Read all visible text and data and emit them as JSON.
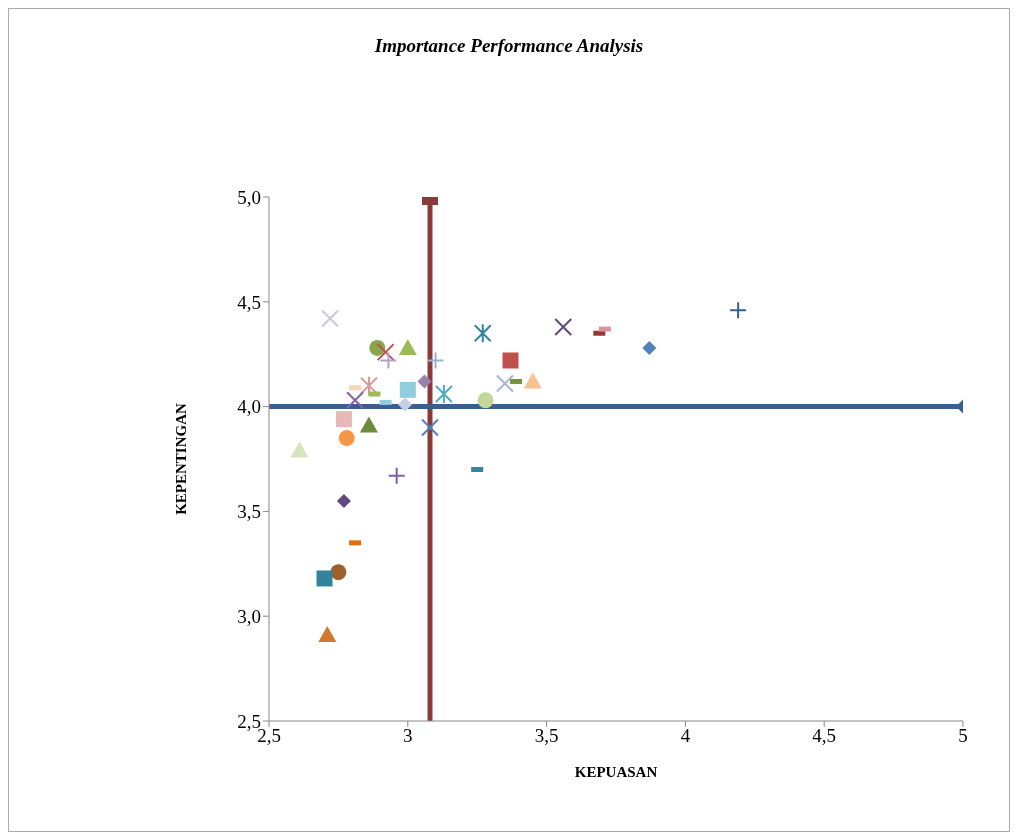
{
  "chart_data": {
    "type": "scatter",
    "title": "Importance Performance Analysis",
    "xlabel": "KEPUASAN",
    "ylabel": "KEPENTINGAN",
    "xlim": [
      2.5,
      5
    ],
    "ylim": [
      2.5,
      5
    ],
    "xticks": [
      {
        "value": 2.5,
        "label": "2,5"
      },
      3,
      {
        "value": 3.5,
        "label": "3,5"
      },
      4,
      {
        "value": 4.5,
        "label": "4,5"
      },
      5
    ],
    "yticks": [
      {
        "value": 2.5,
        "label": "2,5"
      },
      {
        "value": 3,
        "label": "3,0"
      },
      {
        "value": 3.5,
        "label": "3,5"
      },
      {
        "value": 4,
        "label": "4,0"
      },
      {
        "value": 4.5,
        "label": "4,5"
      },
      {
        "value": 5,
        "label": "5,0"
      }
    ],
    "grid": false,
    "series": [
      {
        "x": [
          2.72
        ],
        "values": [
          4.42
        ],
        "marker": "x",
        "color": "#ccc8dc"
      },
      {
        "x": [
          2.89
        ],
        "values": [
          4.28
        ],
        "marker": "circle",
        "color": "#8aa64a"
      },
      {
        "x": [
          2.92
        ],
        "values": [
          4.26
        ],
        "marker": "x",
        "color": "#c0504d"
      },
      {
        "x": [
          3.0
        ],
        "values": [
          4.28
        ],
        "marker": "triangle",
        "color": "#9bbb59"
      },
      {
        "x": [
          2.93
        ],
        "values": [
          4.22
        ],
        "marker": "plus",
        "color": "#b3a2c7"
      },
      {
        "x": [
          3.1
        ],
        "values": [
          4.22
        ],
        "marker": "plus",
        "color": "#95b3d7"
      },
      {
        "x": [
          3.27
        ],
        "values": [
          4.35
        ],
        "marker": "cross",
        "color": "#31859c"
      },
      {
        "x": [
          3.37
        ],
        "values": [
          4.22
        ],
        "marker": "square",
        "color": "#c0504d"
      },
      {
        "x": [
          3.35
        ],
        "values": [
          4.11
        ],
        "marker": "x",
        "color": "#a6b7d8"
      },
      {
        "x": [
          3.39
        ],
        "values": [
          4.12
        ],
        "color": "#77933c"
      },
      {
        "x": [
          3.45
        ],
        "values": [
          4.12
        ],
        "marker": "triangle",
        "color": "#fac090"
      },
      {
        "x": [
          3.28
        ],
        "values": [
          4.03
        ],
        "marker": "circle",
        "color": "#c4d79b"
      },
      {
        "x": [
          3.56
        ],
        "values": [
          4.38
        ],
        "marker": "x",
        "color": "#604a7b"
      },
      {
        "x": [
          3.69
        ],
        "values": [
          4.35
        ],
        "color": "#953735"
      },
      {
        "x": [
          3.71
        ],
        "values": [
          4.37
        ],
        "color": "#da9694"
      },
      {
        "x": [
          3.87
        ],
        "values": [
          4.28
        ],
        "marker": "diamond",
        "color": "#4f81bd"
      },
      {
        "x": [
          4.19
        ],
        "values": [
          4.46
        ],
        "marker": "plus",
        "color": "#376092"
      },
      {
        "x": [
          2.86
        ],
        "values": [
          4.1
        ],
        "marker": "cross",
        "color": "#d99694"
      },
      {
        "x": [
          2.81
        ],
        "values": [
          4.09
        ],
        "color": "#fcd5b5"
      },
      {
        "x": [
          2.88
        ],
        "values": [
          4.06
        ],
        "color": "#9bbb59"
      },
      {
        "x": [
          2.81
        ],
        "values": [
          4.03
        ],
        "marker": "x",
        "color": "#8064a2"
      },
      {
        "x": [
          2.92
        ],
        "values": [
          4.02
        ],
        "color": "#93cddd"
      },
      {
        "x": [
          3.0
        ],
        "values": [
          4.08
        ],
        "marker": "square",
        "color": "#92cddc"
      },
      {
        "x": [
          3.06
        ],
        "values": [
          4.12
        ],
        "marker": "diamond",
        "color": "#9882b0"
      },
      {
        "x": [
          2.99
        ],
        "values": [
          4.01
        ],
        "marker": "diamond",
        "color": "#c5d0e6"
      },
      {
        "x": [
          3.13
        ],
        "values": [
          4.06
        ],
        "marker": "cross",
        "color": "#4bacc6"
      },
      {
        "x": [
          3.08
        ],
        "values": [
          3.9
        ],
        "marker": "x",
        "color": "#4f81bd"
      },
      {
        "x": [
          2.77
        ],
        "values": [
          3.94
        ],
        "marker": "square",
        "color": "#e6b9b8"
      },
      {
        "x": [
          2.86
        ],
        "values": [
          3.91
        ],
        "marker": "triangle",
        "color": "#6b8a3a"
      },
      {
        "x": [
          2.78
        ],
        "values": [
          3.85
        ],
        "marker": "circle",
        "color": "#f79646"
      },
      {
        "x": [
          2.61
        ],
        "values": [
          3.79
        ],
        "marker": "triangle",
        "color": "#d7e4bd"
      },
      {
        "x": [
          2.96
        ],
        "values": [
          3.67
        ],
        "marker": "plus",
        "color": "#7f5f9f"
      },
      {
        "x": [
          3.25
        ],
        "values": [
          3.7
        ],
        "color": "#31859c"
      },
      {
        "x": [
          2.77
        ],
        "values": [
          3.55
        ],
        "marker": "diamond",
        "color": "#604a7b"
      },
      {
        "x": [
          2.81
        ],
        "values": [
          3.35
        ],
        "color": "#e46c0a"
      },
      {
        "x": [
          2.75
        ],
        "values": [
          3.21
        ],
        "marker": "circle",
        "color": "#a0602c"
      },
      {
        "x": [
          2.7
        ],
        "values": [
          3.18
        ],
        "marker": "square",
        "color": "#31849b"
      },
      {
        "x": [
          2.71
        ],
        "values": [
          2.91
        ],
        "marker": "triangle",
        "color": "#d07a2e"
      },
      {
        "x": [
          3.08
        ],
        "values": [
          5.0
        ],
        "marker": "square",
        "color": "#8b3a3a",
        "errors": [
          [
            2.5,
            5.0
          ]
        ]
      },
      {
        "x": [
          5.0
        ],
        "values": [
          4.0
        ],
        "marker": "diamond",
        "color": "#3b5e8c",
        "xerrors": [
          [
            2.5,
            5.0
          ]
        ]
      }
    ]
  }
}
